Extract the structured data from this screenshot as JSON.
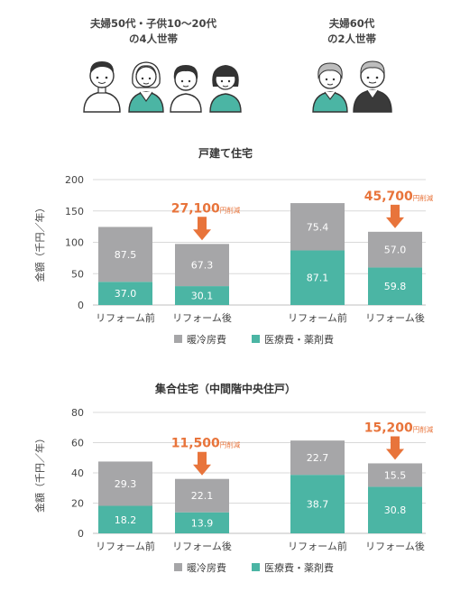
{
  "households": [
    {
      "label_line1": "夫婦50代・子供10〜20代",
      "label_line2": "の4人世帯"
    },
    {
      "label_line1": "夫婦60代",
      "label_line2": "の2人世帯"
    }
  ],
  "colors": {
    "heating": "#a6a6a8",
    "medical": "#4bb5a4",
    "accent": "#e8743b",
    "grid": "#d9d9d9"
  },
  "chart_data": [
    {
      "type": "bar",
      "stacked": true,
      "title": "戸建て住宅",
      "ylabel": "金額（千円／年）",
      "ylim": [
        0,
        200
      ],
      "yticks": [
        0,
        50,
        100,
        150,
        200
      ],
      "categories": [
        "リフォーム前",
        "リフォーム後",
        "リフォーム前",
        "リフォーム後"
      ],
      "series": [
        {
          "name": "医療費・薬剤費",
          "values": [
            37.0,
            30.1,
            87.1,
            59.8
          ]
        },
        {
          "name": "暖冷房費",
          "values": [
            87.5,
            67.3,
            75.4,
            57.0
          ]
        }
      ],
      "segment_labels": [
        [
          "37.0",
          "30.1",
          "87.1",
          "59.8"
        ],
        [
          "87.5",
          "67.3",
          "75.4",
          "57.0"
        ]
      ],
      "annotations": [
        {
          "bar": 1,
          "value": "27,100",
          "unit": "円削減"
        },
        {
          "bar": 3,
          "value": "45,700",
          "unit": "円削減"
        }
      ],
      "legend": [
        "暖冷房費",
        "医療費・薬剤費"
      ],
      "grid": true,
      "legend_position": "bottom"
    },
    {
      "type": "bar",
      "stacked": true,
      "title": "集合住宅（中間階中央住戸）",
      "ylabel": "金額（千円／年）",
      "ylim": [
        0,
        80
      ],
      "yticks": [
        0,
        20,
        40,
        60,
        80
      ],
      "categories": [
        "リフォーム前",
        "リフォーム後",
        "リフォーム前",
        "リフォーム後"
      ],
      "series": [
        {
          "name": "医療費・薬剤費",
          "values": [
            18.2,
            13.9,
            38.7,
            30.8
          ]
        },
        {
          "name": "暖冷房費",
          "values": [
            29.3,
            22.1,
            22.7,
            15.5
          ]
        }
      ],
      "segment_labels": [
        [
          "18.2",
          "13.9",
          "38.7",
          "30.8"
        ],
        [
          "29.3",
          "22.1",
          "22.7",
          "15.5"
        ]
      ],
      "annotations": [
        {
          "bar": 1,
          "value": "11,500",
          "unit": "円削減"
        },
        {
          "bar": 3,
          "value": "15,200",
          "unit": "円削減"
        }
      ],
      "legend": [
        "暖冷房費",
        "医療費・薬剤費"
      ],
      "grid": true,
      "legend_position": "bottom"
    }
  ]
}
